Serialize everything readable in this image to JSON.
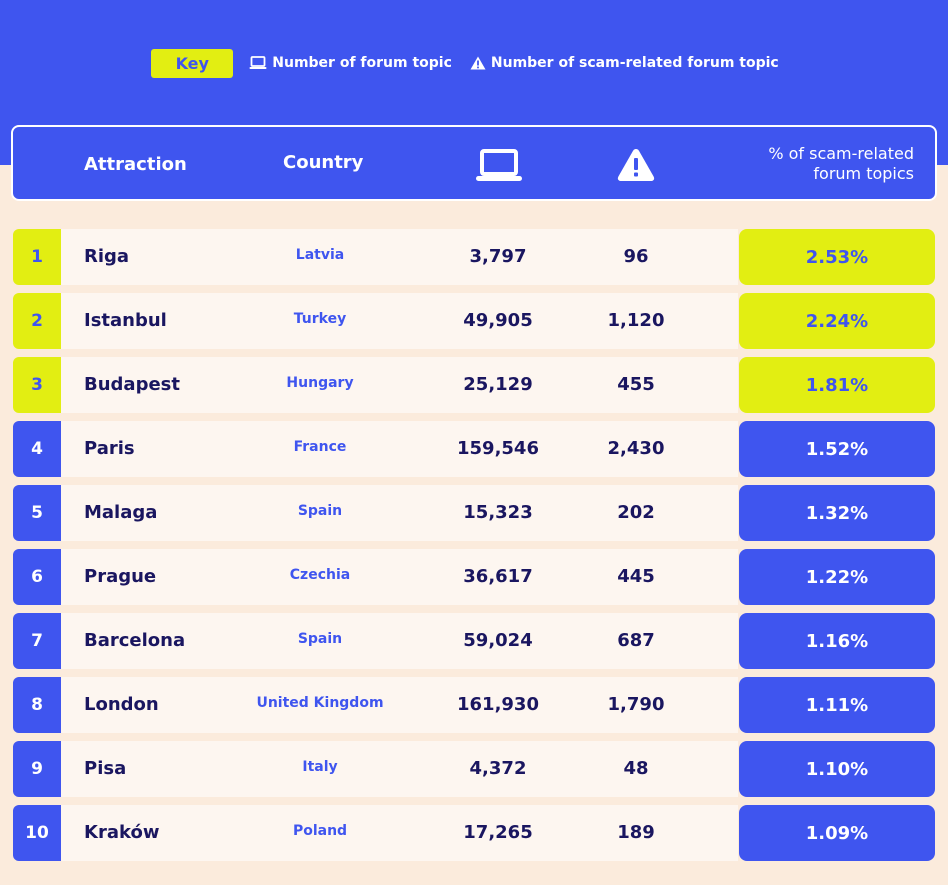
{
  "key": {
    "badge_label": "Key",
    "laptop_label": "Number of forum topic",
    "warning_label": "Number of scam-related forum topic",
    "laptop_icon": "laptop-icon",
    "warning_icon": "warning-icon"
  },
  "colors": {
    "brand_blue": "#3f55ef",
    "highlight_yellow": "#e2ee12",
    "background_cream": "#fbebdc",
    "text_navy": "#1a1660"
  },
  "header": {
    "attraction": "Attraction",
    "country": "Country",
    "pct_line1": "% of scam-related",
    "pct_line2": "forum topics"
  },
  "chart_data": {
    "type": "table",
    "columns": [
      "",
      "Attraction",
      "Country",
      "laptop-icon",
      "warning-icon",
      "% of scam-related forum topics"
    ],
    "rows": [
      {
        "rank": "1",
        "attraction": "Riga",
        "country": "Latvia",
        "topics": "3,797",
        "scam_topics": "96",
        "pct": "2.53%",
        "highlight": true
      },
      {
        "rank": "2",
        "attraction": "Istanbul",
        "country": "Turkey",
        "topics": "49,905",
        "scam_topics": "1,120",
        "pct": "2.24%",
        "highlight": true
      },
      {
        "rank": "3",
        "attraction": "Budapest",
        "country": "Hungary",
        "topics": "25,129",
        "scam_topics": "455",
        "pct": "1.81%",
        "highlight": true
      },
      {
        "rank": "4",
        "attraction": "Paris",
        "country": "France",
        "topics": "159,546",
        "scam_topics": "2,430",
        "pct": "1.52%",
        "highlight": false
      },
      {
        "rank": "5",
        "attraction": "Malaga",
        "country": "Spain",
        "topics": "15,323",
        "scam_topics": "202",
        "pct": "1.32%",
        "highlight": false
      },
      {
        "rank": "6",
        "attraction": "Prague",
        "country": "Czechia",
        "topics": "36,617",
        "scam_topics": "445",
        "pct": "1.22%",
        "highlight": false
      },
      {
        "rank": "7",
        "attraction": "Barcelona",
        "country": "Spain",
        "topics": "59,024",
        "scam_topics": "687",
        "pct": "1.16%",
        "highlight": false
      },
      {
        "rank": "8",
        "attraction": "London",
        "country": "United Kingdom",
        "topics": "161,930",
        "scam_topics": "1,790",
        "pct": "1.11%",
        "highlight": false
      },
      {
        "rank": "9",
        "attraction": "Pisa",
        "country": "Italy",
        "topics": "4,372",
        "scam_topics": "48",
        "pct": "1.10%",
        "highlight": false
      },
      {
        "rank": "10",
        "attraction": "Kraków",
        "country": "Poland",
        "topics": "17,265",
        "scam_topics": "189",
        "pct": "1.09%",
        "highlight": false
      }
    ]
  }
}
